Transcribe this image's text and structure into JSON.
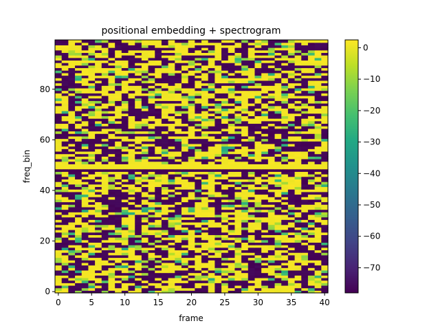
{
  "chart_data": {
    "type": "heatmap",
    "title": "positional embedding + spectrogram",
    "xlabel": "frame",
    "ylabel": "freq_bin",
    "x_ticks": [
      0,
      5,
      10,
      15,
      20,
      25,
      30,
      35,
      40
    ],
    "y_ticks": [
      0,
      20,
      40,
      60,
      80
    ],
    "xlim": [
      -0.5,
      40.5
    ],
    "ylim": [
      -0.5,
      99.5
    ],
    "n_frames": 41,
    "n_freq_bins": 100,
    "origin": "lower",
    "colormap": "viridis",
    "color_range": [
      -78,
      2.5
    ],
    "colorbar_ticks": [
      0,
      -10,
      -20,
      -30,
      -40,
      -50,
      -60,
      -70
    ],
    "grid": false,
    "note_values": "cells are a fine-grained alternation between approx. -78 and approx. 1; values per cell are approximated (not individually legible)",
    "dark_rows_full_width": [
      48
    ],
    "bright_rows_full_width": [
      49,
      50
    ],
    "mostly_dark_rows": [
      59,
      62
    ]
  }
}
